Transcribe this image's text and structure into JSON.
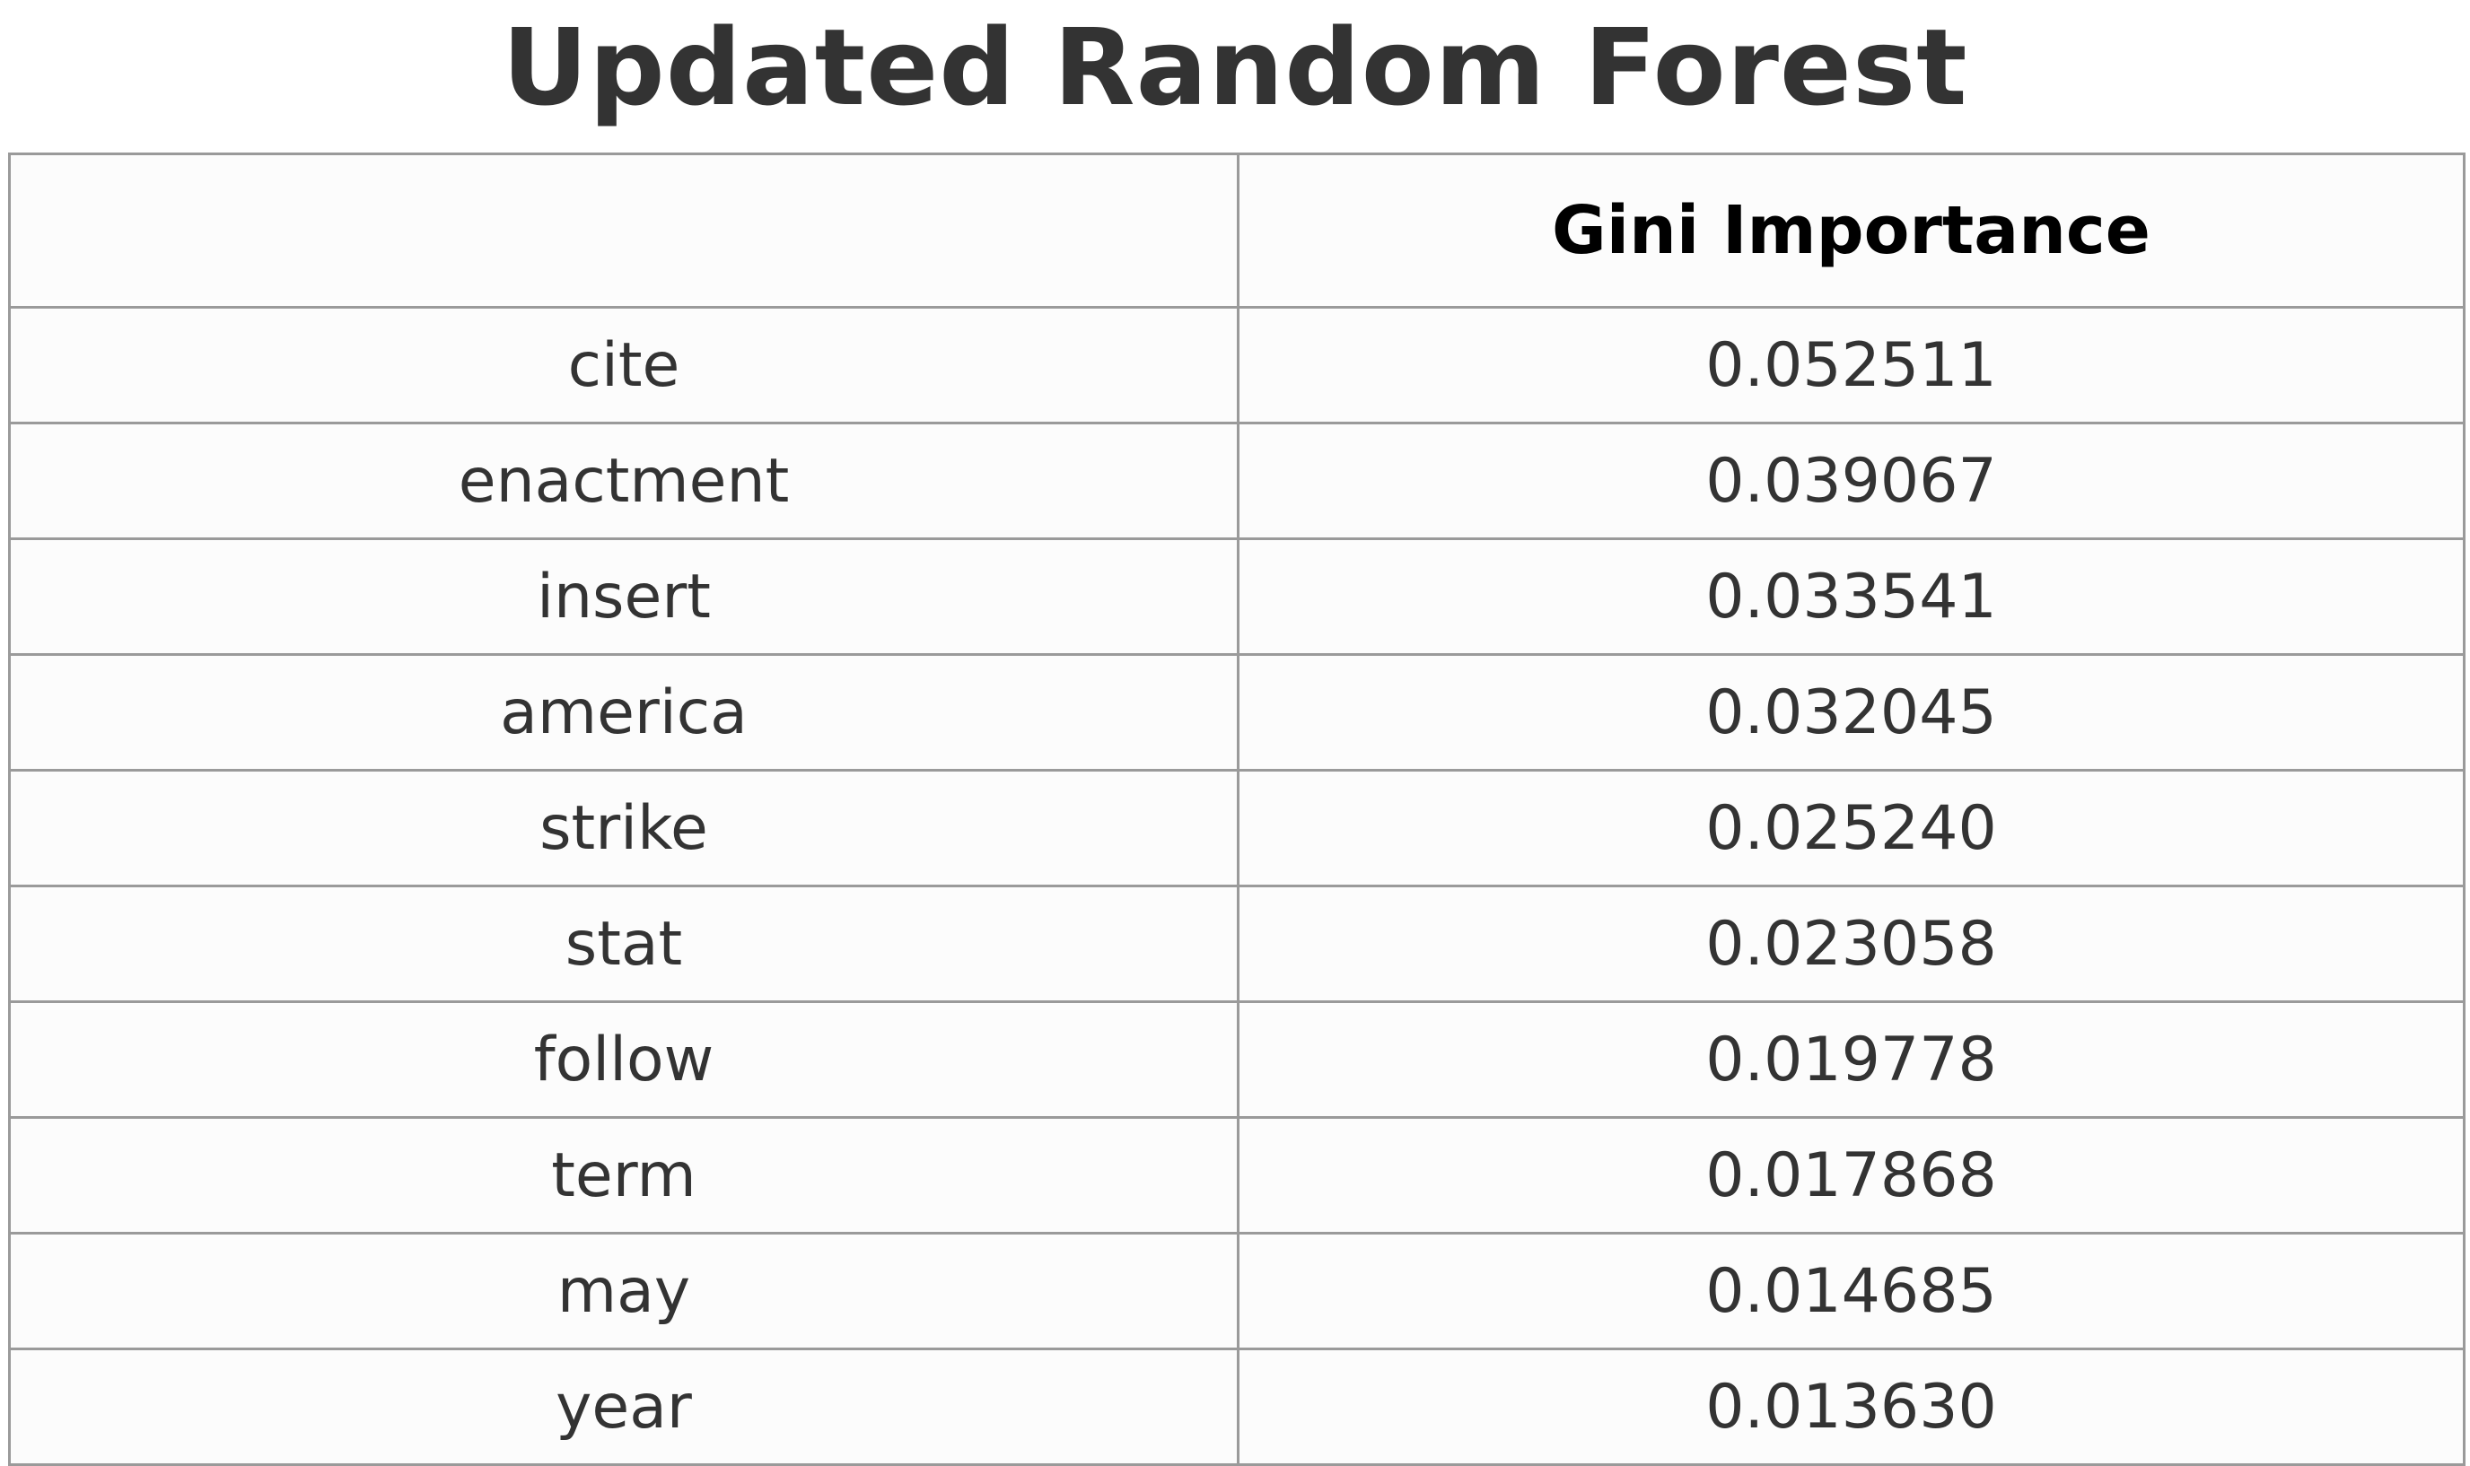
{
  "chart_data": {
    "type": "table",
    "title": "Updated Random Forest",
    "columns": [
      "",
      "Gini Importance"
    ],
    "rows": [
      {
        "term": "cite",
        "value": "0.052511"
      },
      {
        "term": "enactment",
        "value": "0.039067"
      },
      {
        "term": "insert",
        "value": "0.033541"
      },
      {
        "term": "america",
        "value": "0.032045"
      },
      {
        "term": "strike",
        "value": "0.025240"
      },
      {
        "term": "stat",
        "value": "0.023058"
      },
      {
        "term": "follow",
        "value": "0.019778"
      },
      {
        "term": "term",
        "value": "0.017868"
      },
      {
        "term": "may",
        "value": "0.014685"
      },
      {
        "term": "year",
        "value": "0.013630"
      }
    ]
  }
}
